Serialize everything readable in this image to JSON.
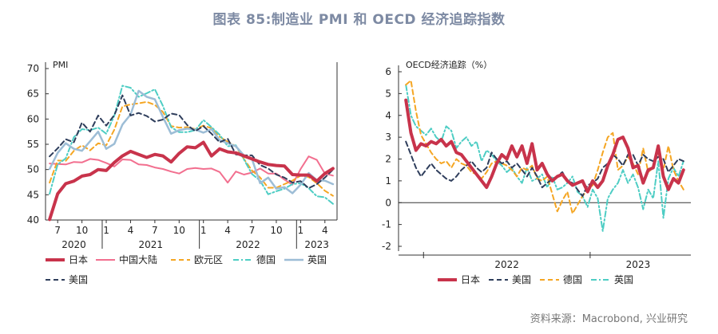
{
  "title": "图表 85:制造业 PMI 和 OECD 经济追踪指数",
  "source": "资料来源：Macrobond, 兴业研究",
  "chart_data": [
    {
      "type": "line",
      "ylabel": "PMI",
      "ylim": [
        40,
        70
      ],
      "yticks": [
        "40",
        "45",
        "50",
        "55",
        "60",
        "65",
        "70"
      ],
      "x_tick_labels": [
        "7",
        "10",
        "1",
        "4",
        "7",
        "10",
        "1",
        "4",
        "7",
        "10",
        "1",
        "4"
      ],
      "year_labels": [
        "2020",
        "2021",
        "2022",
        "2023"
      ],
      "x_range": [
        "2020-06",
        "2023-05"
      ],
      "legend_position": "bottom",
      "series": [
        {
          "name": "日本",
          "color": "#c8334b",
          "dash": "solid",
          "width": 4,
          "values": [
            40.1,
            45.2,
            47.2,
            47.7,
            48.7,
            49.0,
            50.0,
            49.8,
            51.4,
            52.7,
            53.6,
            53.0,
            52.4,
            53.0,
            52.7,
            51.5,
            53.2,
            54.5,
            54.3,
            55.4,
            52.7,
            54.1,
            53.5,
            53.3,
            52.7,
            52.1,
            51.5,
            51.0,
            50.8,
            50.7,
            49.0,
            48.9,
            48.9,
            47.7,
            49.2,
            50.2
          ]
        },
        {
          "name": "中国大陆",
          "color": "#f26f8f",
          "dash": "solid",
          "width": 2,
          "values": [
            51.2,
            51.1,
            51.0,
            51.5,
            51.4,
            52.1,
            51.9,
            51.3,
            50.6,
            52.0,
            51.9,
            51.0,
            50.9,
            50.4,
            50.1,
            49.6,
            49.2,
            50.1,
            50.3,
            50.1,
            50.2,
            49.5,
            47.4,
            49.6,
            49.0,
            49.4,
            50.2,
            49.2,
            49.2,
            48.0,
            47.0,
            50.1,
            52.6,
            51.9,
            49.2,
            48.8
          ]
        },
        {
          "name": "欧元区",
          "color": "#f5a623",
          "dash": "dashed",
          "width": 2,
          "values": [
            47.4,
            51.8,
            51.7,
            53.7,
            54.8,
            53.8,
            55.2,
            54.8,
            57.9,
            62.5,
            62.9,
            63.1,
            63.4,
            62.8,
            61.4,
            58.6,
            58.3,
            58.4,
            58.0,
            58.7,
            58.2,
            56.5,
            55.5,
            54.6,
            52.1,
            49.8,
            48.4,
            46.4,
            46.4,
            47.1,
            47.8,
            48.8,
            48.5,
            47.3,
            45.8,
            44.8
          ]
        },
        {
          "name": "德国",
          "color": "#4ecdc4",
          "dash": "dashdot",
          "width": 2,
          "values": [
            45.2,
            51.0,
            52.2,
            56.4,
            58.0,
            57.8,
            58.3,
            57.1,
            60.7,
            66.6,
            66.2,
            64.4,
            65.1,
            65.9,
            62.6,
            58.4,
            57.4,
            57.4,
            57.8,
            59.8,
            58.4,
            56.9,
            54.6,
            54.8,
            52.0,
            49.1,
            47.8,
            45.1,
            45.7,
            46.2,
            47.1,
            47.3,
            46.3,
            44.7,
            44.5,
            43.2
          ]
        },
        {
          "name": "英国",
          "color": "#9dbdd6",
          "dash": "solid",
          "width": 2.5,
          "values": [
            50.1,
            53.3,
            55.2,
            54.1,
            53.7,
            55.6,
            57.5,
            54.1,
            55.1,
            58.9,
            60.9,
            65.6,
            64.4,
            63.9,
            60.4,
            57.1,
            57.8,
            58.1,
            57.9,
            57.3,
            58.0,
            55.8,
            55.2,
            54.6,
            52.8,
            52.1,
            47.3,
            48.4,
            46.2,
            46.5,
            45.3,
            47.0,
            49.3,
            47.9,
            47.8,
            47.1
          ]
        },
        {
          "name": "美国",
          "color": "#2f3e5c",
          "dash": "dashed",
          "width": 2,
          "values": [
            52.6,
            54.2,
            56.0,
            55.4,
            59.3,
            57.5,
            60.7,
            58.7,
            60.8,
            64.7,
            60.7,
            61.2,
            60.6,
            59.5,
            59.9,
            61.1,
            60.8,
            58.8,
            57.6,
            58.6,
            57.1,
            55.4,
            56.1,
            53.0,
            52.8,
            52.8,
            50.9,
            50.2,
            49.0,
            48.4,
            47.4,
            47.7,
            46.3,
            47.1,
            48.4,
            50.0
          ]
        }
      ]
    },
    {
      "type": "line",
      "ylabel": "OECD经济追踪（%）",
      "ylim": [
        -2,
        6
      ],
      "yticks": [
        "-2",
        "-1",
        "0",
        "1",
        "2",
        "3",
        "4",
        "5",
        "6"
      ],
      "year_labels": [
        "2022",
        "2023"
      ],
      "x_range": [
        "2021-09",
        "2023-05"
      ],
      "legend_position": "bottom",
      "series": [
        {
          "name": "日本",
          "color": "#c8334b",
          "dash": "solid",
          "width": 4,
          "values": [
            4.7,
            3.2,
            2.4,
            2.7,
            2.6,
            2.8,
            2.7,
            2.9,
            2.6,
            2.8,
            2.3,
            2.2,
            1.9,
            1.6,
            1.3,
            1.0,
            0.7,
            1.2,
            1.8,
            2.2,
            2.0,
            2.6,
            2.1,
            2.6,
            1.8,
            2.7,
            1.5,
            1.8,
            1.3,
            1.0,
            1.2,
            1.3,
            1.0,
            0.8,
            0.9,
            1.0,
            0.5,
            1.0,
            0.7,
            1.0,
            1.7,
            2.2,
            2.9,
            3.0,
            2.5,
            1.6,
            1.7,
            0.9,
            1.5,
            1.6,
            2.6,
            1.2,
            0.6,
            1.1,
            0.9,
            1.5
          ]
        },
        {
          "name": "美国",
          "color": "#2f3e5c",
          "dash": "dashed",
          "width": 2,
          "values": [
            2.8,
            2.2,
            1.6,
            1.2,
            1.5,
            1.8,
            1.5,
            1.3,
            1.1,
            1.0,
            1.2,
            1.5,
            1.7,
            1.9,
            1.6,
            1.4,
            1.6,
            2.3,
            2.0,
            1.8,
            1.9,
            1.6,
            1.8,
            1.5,
            1.2,
            1.6,
            1.2,
            0.7,
            0.9,
            1.1,
            1.2,
            1.4,
            1.0,
            0.9,
            0.6,
            0.3,
            0.8,
            0.9,
            1.1,
            1.6,
            1.8,
            2.2,
            2.0,
            1.7,
            2.2,
            2.2,
            1.7,
            2.2,
            2.0,
            1.9,
            2.1,
            2.0,
            1.4,
            1.7,
            2.0,
            1.9
          ]
        },
        {
          "name": "德国",
          "color": "#f5a623",
          "dash": "dashed",
          "width": 2,
          "values": [
            5.4,
            5.6,
            4.2,
            3.1,
            2.7,
            2.3,
            2.0,
            1.8,
            1.9,
            1.6,
            2.0,
            1.8,
            1.7,
            1.4,
            1.3,
            1.1,
            1.4,
            1.8,
            1.9,
            1.8,
            1.7,
            1.5,
            1.2,
            1.6,
            1.5,
            1.7,
            1.1,
            1.0,
            1.2,
            0.4,
            -0.4,
            0.1,
            0.5,
            -0.5,
            -0.1,
            0.3,
            0.6,
            0.8,
            1.5,
            2.3,
            3.0,
            3.2,
            1.5,
            1.7,
            2.1,
            1.8,
            1.3,
            2.5,
            1.4,
            1.6,
            2.4,
            1.5,
            2.6,
            1.5,
            1.0,
            0.6
          ]
        },
        {
          "name": "英国",
          "color": "#4ecdc4",
          "dash": "dashdot",
          "width": 2,
          "values": [
            5.4,
            4.0,
            3.5,
            3.3,
            3.1,
            3.4,
            3.0,
            2.8,
            3.5,
            3.3,
            2.5,
            2.8,
            3.0,
            2.6,
            2.8,
            1.9,
            2.4,
            2.2,
            1.9,
            1.7,
            1.4,
            1.6,
            1.2,
            0.9,
            1.6,
            1.0,
            1.1,
            1.3,
            0.7,
            1.2,
            0.6,
            0.7,
            0.9,
            1.2,
            0.5,
            0.3,
            -0.2,
            0.6,
            0.2,
            -1.3,
            0.2,
            0.6,
            0.9,
            1.5,
            0.9,
            1.3,
            0.7,
            -0.3,
            0.6,
            0.2,
            1.9,
            -0.7,
            1.1,
            1.6,
            1.2,
            1.9
          ]
        }
      ]
    }
  ]
}
